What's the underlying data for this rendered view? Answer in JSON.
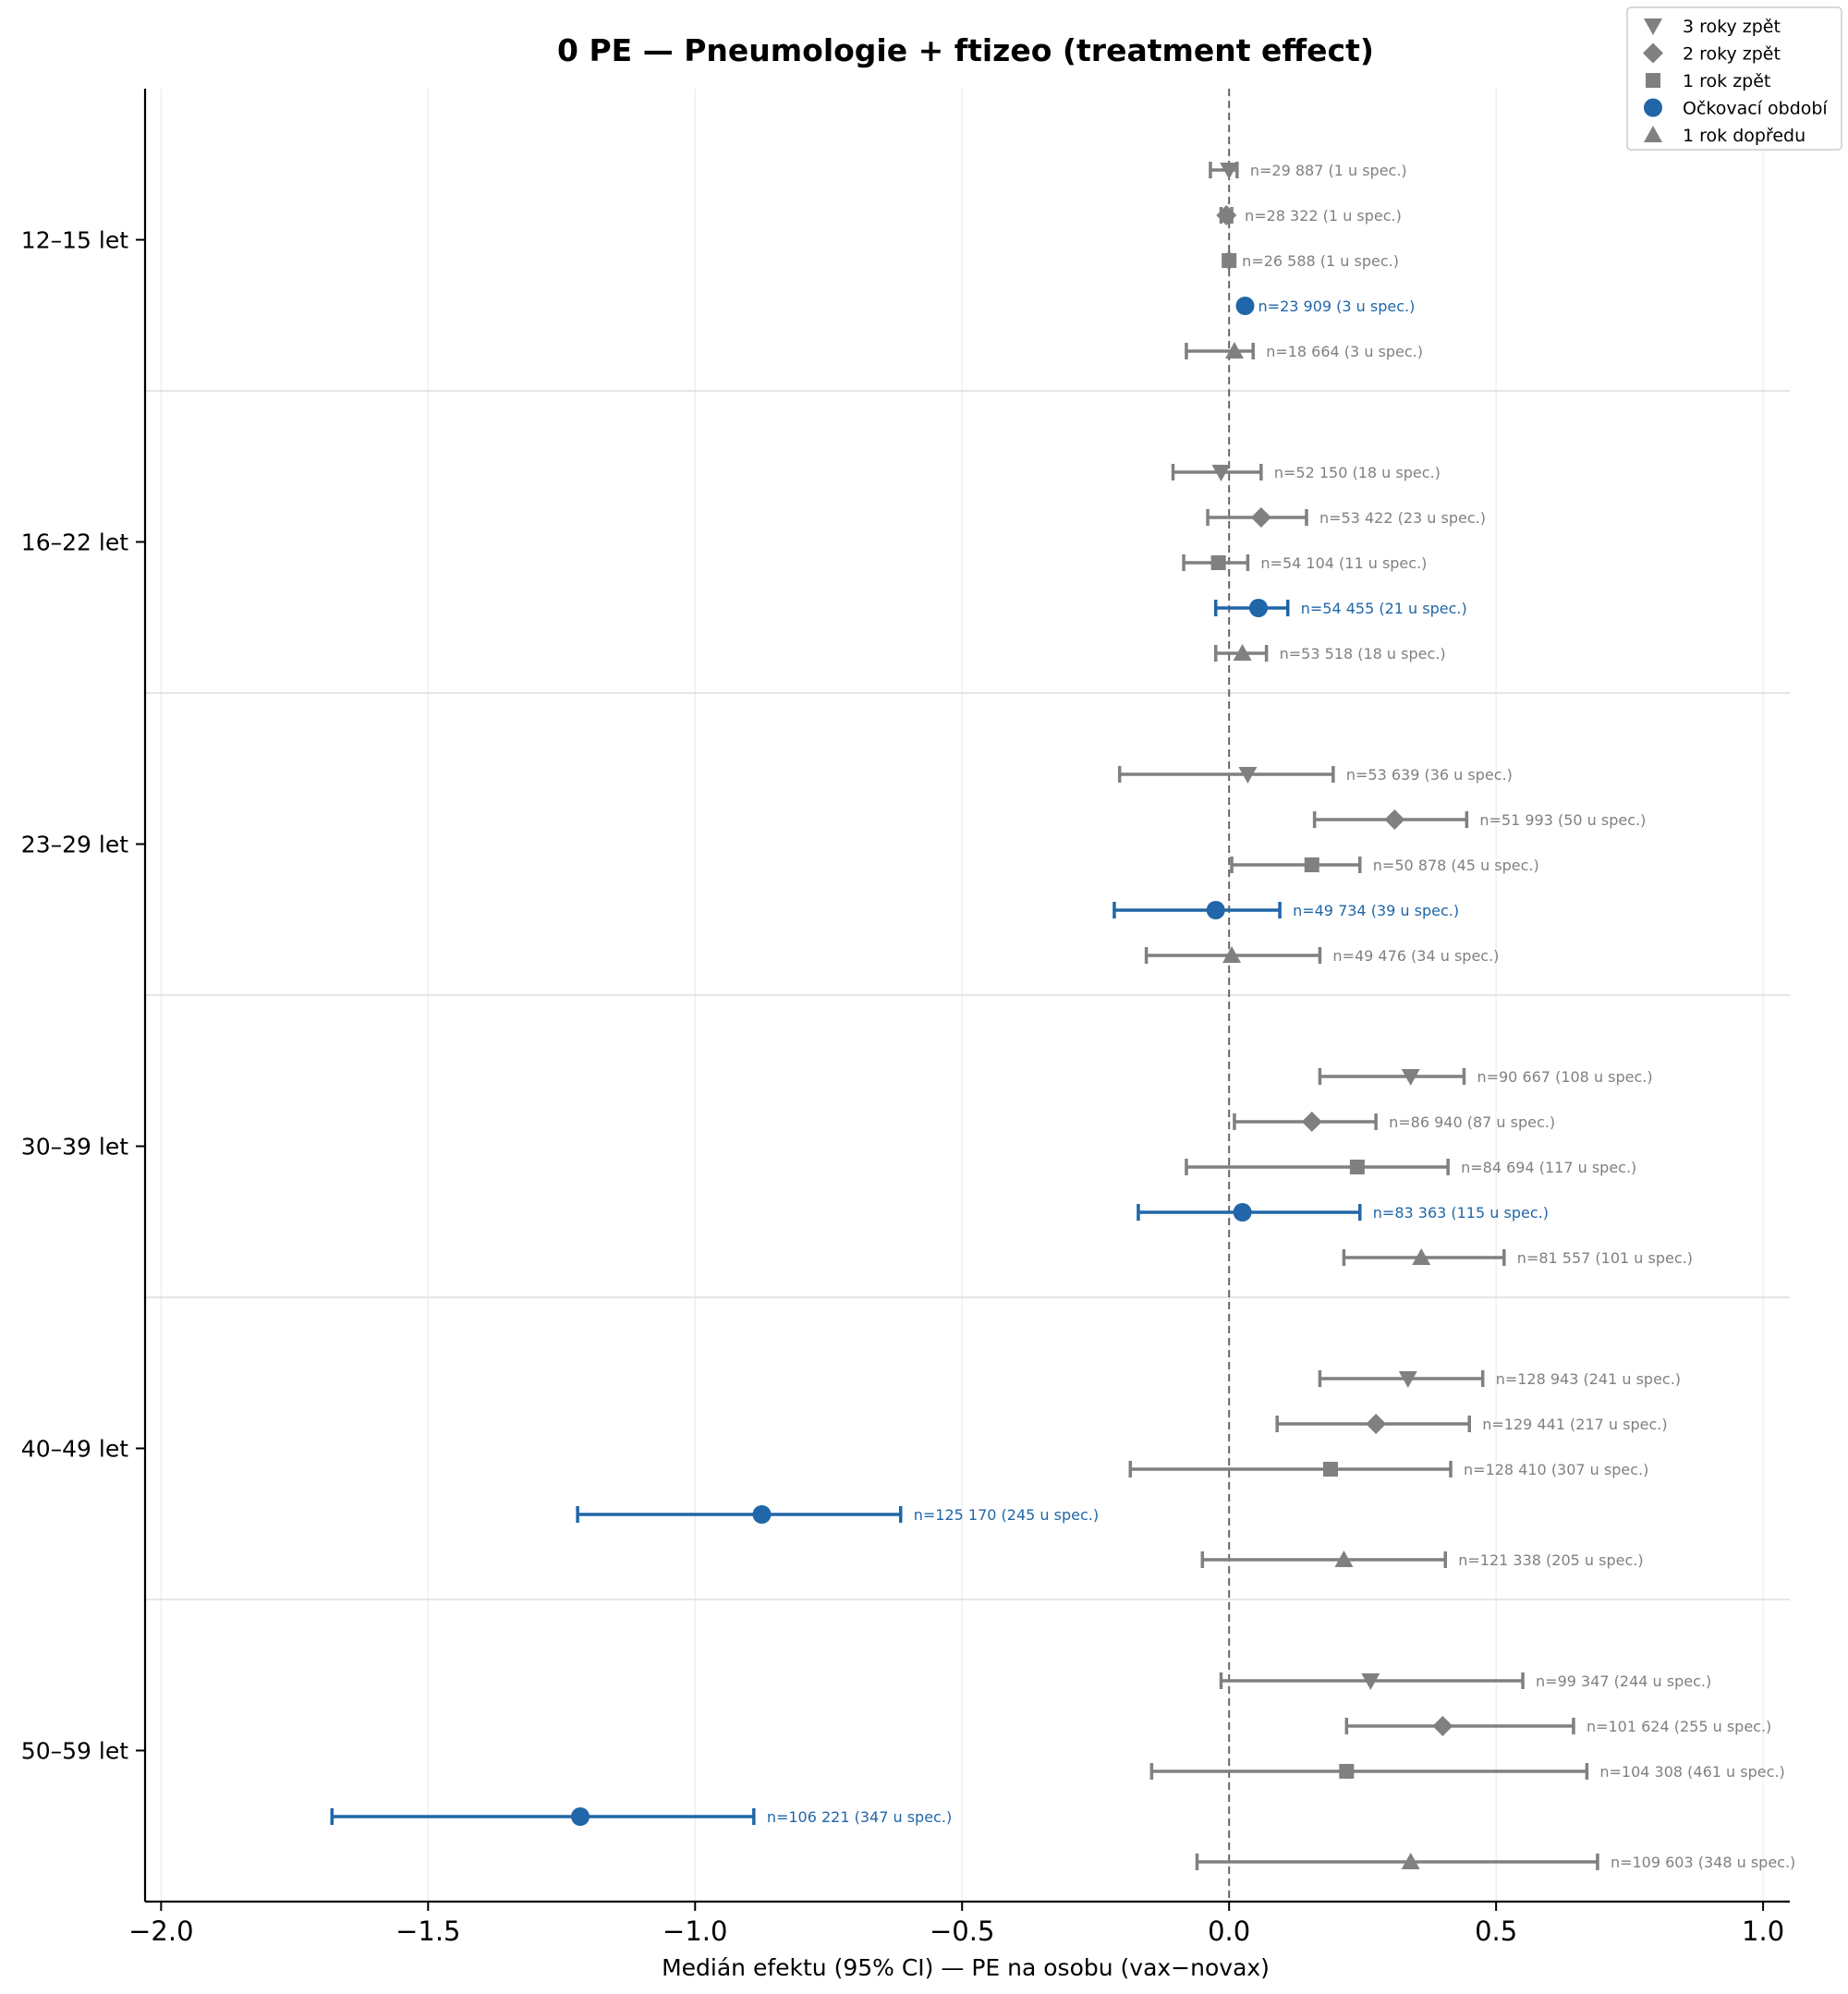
{
  "chart_data": {
    "type": "scatter",
    "variant": "forest-plot",
    "title": "0 PE — Pneumologie + ftizeo (treatment effect)",
    "xlabel": "Medián efektu (95% CI) — PE na osobu (vax−novax)",
    "ylabel": "",
    "xlim": [
      -2.03,
      1.05
    ],
    "xticks": [
      -2.0,
      -1.5,
      -1.0,
      -0.5,
      0.0,
      0.5,
      1.0
    ],
    "xtick_labels": [
      "−2.0",
      "−1.5",
      "−1.0",
      "−0.5",
      "0.0",
      "0.5",
      "1.0"
    ],
    "grid": true,
    "reference_line": 0,
    "legend_position": "top-right",
    "colors": {
      "gray": "#808080",
      "blue": "#2066a8"
    },
    "series": [
      {
        "key": "m3",
        "name": "3 roky zpět",
        "marker": "triangle-down",
        "color": "#808080"
      },
      {
        "key": "m2",
        "name": "2 roky zpět",
        "marker": "diamond",
        "color": "#808080"
      },
      {
        "key": "m1",
        "name": "1 rok zpět",
        "marker": "square",
        "color": "#808080"
      },
      {
        "key": "vax",
        "name": "Očkovací období",
        "marker": "circle",
        "color": "#2066a8"
      },
      {
        "key": "p1",
        "name": "1 rok dopředu",
        "marker": "triangle-up",
        "color": "#808080"
      }
    ],
    "groups": [
      {
        "label": "12–15 let",
        "rows": [
          {
            "series": "m3",
            "median": 0.0,
            "lo": -0.035,
            "hi": 0.015,
            "label": "n=29 887 (1 u spec.)"
          },
          {
            "series": "m2",
            "median": -0.005,
            "lo": -0.015,
            "hi": 0.005,
            "label": "n=28 322 (1 u spec.)"
          },
          {
            "series": "m1",
            "median": 0.0,
            "lo": 0.0,
            "hi": 0.0,
            "label": "n=26 588 (1 u spec.)"
          },
          {
            "series": "vax",
            "median": 0.03,
            "lo": 0.03,
            "hi": 0.03,
            "label": "n=23 909 (3 u spec.)"
          },
          {
            "series": "p1",
            "median": 0.01,
            "lo": -0.08,
            "hi": 0.045,
            "label": "n=18 664 (3 u spec.)"
          }
        ]
      },
      {
        "label": "16–22 let",
        "rows": [
          {
            "series": "m3",
            "median": -0.015,
            "lo": -0.105,
            "hi": 0.06,
            "label": "n=52 150 (18 u spec.)"
          },
          {
            "series": "m2",
            "median": 0.06,
            "lo": -0.04,
            "hi": 0.145,
            "label": "n=53 422 (23 u spec.)"
          },
          {
            "series": "m1",
            "median": -0.02,
            "lo": -0.085,
            "hi": 0.035,
            "label": "n=54 104 (11 u spec.)"
          },
          {
            "series": "vax",
            "median": 0.055,
            "lo": -0.025,
            "hi": 0.11,
            "label": "n=54 455 (21 u spec.)"
          },
          {
            "series": "p1",
            "median": 0.025,
            "lo": -0.025,
            "hi": 0.07,
            "label": "n=53 518 (18 u spec.)"
          }
        ]
      },
      {
        "label": "23–29 let",
        "rows": [
          {
            "series": "m3",
            "median": 0.035,
            "lo": -0.205,
            "hi": 0.195,
            "label": "n=53 639 (36 u spec.)"
          },
          {
            "series": "m2",
            "median": 0.31,
            "lo": 0.16,
            "hi": 0.445,
            "label": "n=51 993 (50 u spec.)"
          },
          {
            "series": "m1",
            "median": 0.155,
            "lo": 0.005,
            "hi": 0.245,
            "label": "n=50 878 (45 u spec.)"
          },
          {
            "series": "vax",
            "median": -0.025,
            "lo": -0.215,
            "hi": 0.095,
            "label": "n=49 734 (39 u spec.)"
          },
          {
            "series": "p1",
            "median": 0.005,
            "lo": -0.155,
            "hi": 0.17,
            "label": "n=49 476 (34 u spec.)"
          }
        ]
      },
      {
        "label": "30–39 let",
        "rows": [
          {
            "series": "m3",
            "median": 0.34,
            "lo": 0.17,
            "hi": 0.44,
            "label": "n=90 667 (108 u spec.)"
          },
          {
            "series": "m2",
            "median": 0.155,
            "lo": 0.01,
            "hi": 0.275,
            "label": "n=86 940 (87 u spec.)"
          },
          {
            "series": "m1",
            "median": 0.24,
            "lo": -0.08,
            "hi": 0.41,
            "label": "n=84 694 (117 u spec.)"
          },
          {
            "series": "vax",
            "median": 0.025,
            "lo": -0.17,
            "hi": 0.245,
            "label": "n=83 363 (115 u spec.)"
          },
          {
            "series": "p1",
            "median": 0.36,
            "lo": 0.215,
            "hi": 0.515,
            "label": "n=81 557 (101 u spec.)"
          }
        ]
      },
      {
        "label": "40–49 let",
        "rows": [
          {
            "series": "m3",
            "median": 0.335,
            "lo": 0.17,
            "hi": 0.475,
            "label": "n=128 943 (241 u spec.)"
          },
          {
            "series": "m2",
            "median": 0.275,
            "lo": 0.09,
            "hi": 0.45,
            "label": "n=129 441 (217 u spec.)"
          },
          {
            "series": "m1",
            "median": 0.19,
            "lo": -0.185,
            "hi": 0.415,
            "label": "n=128 410 (307 u spec.)"
          },
          {
            "series": "vax",
            "median": -0.875,
            "lo": -1.22,
            "hi": -0.615,
            "label": "n=125 170 (245 u spec.)"
          },
          {
            "series": "p1",
            "median": 0.215,
            "lo": -0.05,
            "hi": 0.405,
            "label": "n=121 338 (205 u spec.)"
          }
        ]
      },
      {
        "label": "50–59 let",
        "rows": [
          {
            "series": "m3",
            "median": 0.265,
            "lo": -0.015,
            "hi": 0.55,
            "label": "n=99 347 (244 u spec.)"
          },
          {
            "series": "m2",
            "median": 0.4,
            "lo": 0.22,
            "hi": 0.645,
            "label": "n=101 624 (255 u spec.)"
          },
          {
            "series": "m1",
            "median": 0.22,
            "lo": -0.145,
            "hi": 0.67,
            "label": "n=104 308 (461 u spec.)"
          },
          {
            "series": "vax",
            "median": -1.215,
            "lo": -1.68,
            "hi": -0.89,
            "label": "n=106 221 (347 u spec.)"
          },
          {
            "series": "p1",
            "median": 0.34,
            "lo": -0.06,
            "hi": 0.69,
            "label": "n=109 603 (348 u spec.)"
          }
        ]
      }
    ]
  }
}
